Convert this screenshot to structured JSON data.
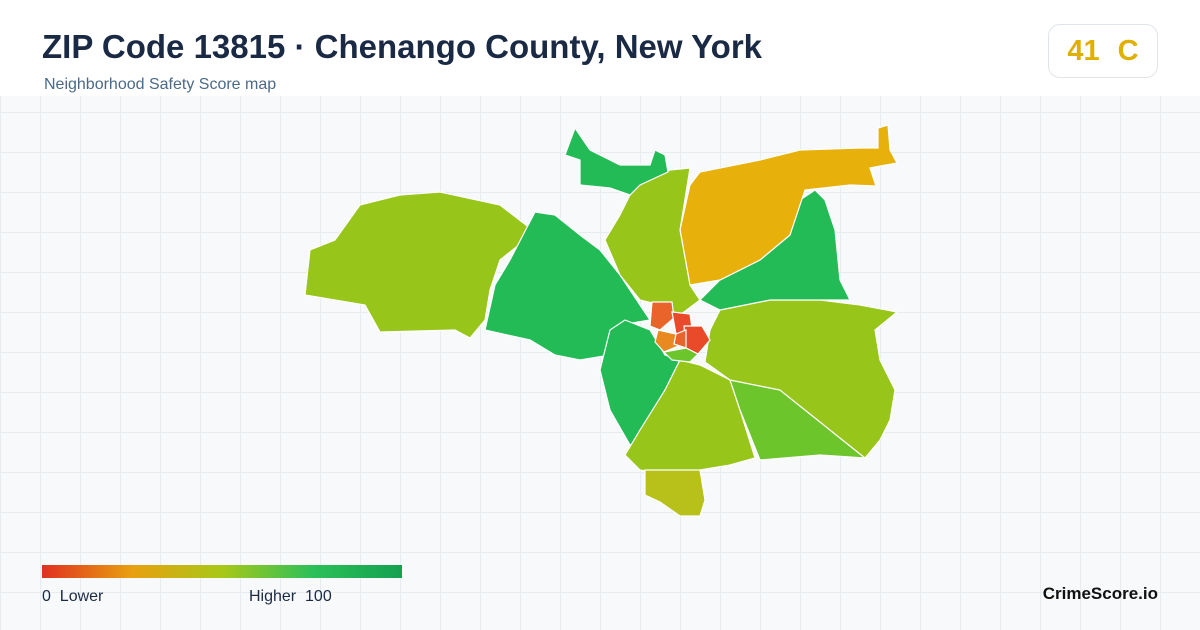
{
  "header": {
    "title": "ZIP Code 13815 · Chenango County, New York",
    "subtitle": "Neighborhood Safety Score map"
  },
  "score": {
    "value": "41",
    "grade": "C"
  },
  "legend": {
    "min": "0",
    "min_label": "Lower",
    "max_label": "Higher",
    "max": "100"
  },
  "brand": "CrimeScore.io"
}
